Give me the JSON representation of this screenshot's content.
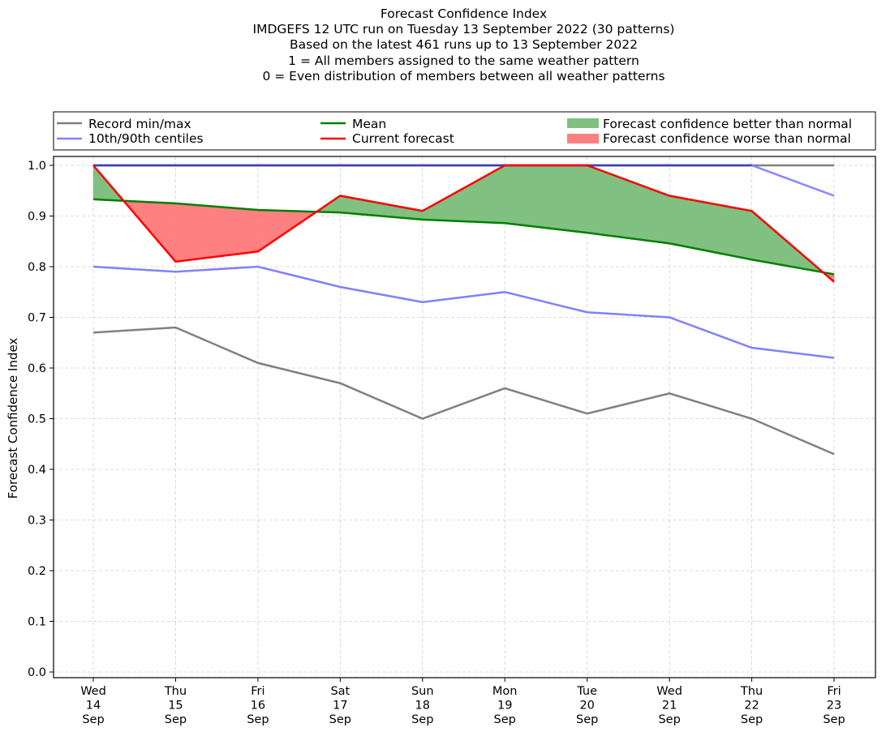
{
  "chart_data": {
    "type": "line",
    "title_lines": [
      "Forecast Confidence Index",
      "IMDGEFS 12 UTC run on Tuesday 13 September 2022 (30 patterns)",
      "Based on the latest 461 runs up to 13 September 2022",
      "1 = All members assigned to the same weather pattern",
      "0 = Even distribution of members between all weather patterns"
    ],
    "xlabel": "",
    "ylabel": "Forecast Confidence Index",
    "ylim": [
      0.0,
      1.0
    ],
    "yticks": [
      "0.0",
      "0.1",
      "0.2",
      "0.3",
      "0.4",
      "0.5",
      "0.6",
      "0.7",
      "0.8",
      "0.9",
      "1.0"
    ],
    "grid": true,
    "legend_position": "top (above plot, 3 columns)",
    "categories": [
      [
        "Wed",
        "14",
        "Sep"
      ],
      [
        "Thu",
        "15",
        "Sep"
      ],
      [
        "Fri",
        "16",
        "Sep"
      ],
      [
        "Sat",
        "17",
        "Sep"
      ],
      [
        "Sun",
        "18",
        "Sep"
      ],
      [
        "Mon",
        "19",
        "Sep"
      ],
      [
        "Tue",
        "20",
        "Sep"
      ],
      [
        "Wed",
        "21",
        "Sep"
      ],
      [
        "Thu",
        "22",
        "Sep"
      ],
      [
        "Fri",
        "23",
        "Sep"
      ]
    ],
    "series": [
      {
        "key": "record_max",
        "name": "Record min/max",
        "color": "#808080",
        "values": [
          1.0,
          1.0,
          1.0,
          1.0,
          1.0,
          1.0,
          1.0,
          1.0,
          1.0,
          1.0
        ]
      },
      {
        "key": "record_min",
        "name": "Record min/max",
        "color": "#808080",
        "values": [
          0.67,
          0.68,
          0.61,
          0.57,
          0.5,
          0.56,
          0.51,
          0.55,
          0.5,
          0.43
        ]
      },
      {
        "key": "p90",
        "name": "10th/90th centiles",
        "color": "#8080ff",
        "values": [
          1.0,
          1.0,
          1.0,
          1.0,
          1.0,
          1.0,
          1.0,
          1.0,
          1.0,
          0.94
        ]
      },
      {
        "key": "p10",
        "name": "10th/90th centiles",
        "color": "#8080ff",
        "values": [
          0.8,
          0.79,
          0.8,
          0.76,
          0.73,
          0.75,
          0.71,
          0.7,
          0.64,
          0.62
        ]
      },
      {
        "key": "mean",
        "name": "Mean",
        "color": "#008000",
        "values": [
          0.933,
          0.925,
          0.912,
          0.907,
          0.893,
          0.886,
          0.867,
          0.846,
          0.814,
          0.785
        ]
      },
      {
        "key": "current",
        "name": "Current forecast",
        "color": "#ff0000",
        "values": [
          1.0,
          0.81,
          0.83,
          0.94,
          0.91,
          1.0,
          1.0,
          0.94,
          0.91,
          0.77
        ]
      }
    ],
    "fills": [
      {
        "name": "Forecast confidence better than normal",
        "color": "#80c080",
        "condition": "current >= mean"
      },
      {
        "name": "Forecast confidence worse than normal",
        "color": "#ff8080",
        "condition": "current < mean"
      }
    ],
    "legend": [
      {
        "label": "Record min/max",
        "type": "line",
        "color": "#808080"
      },
      {
        "label": "10th/90th centiles",
        "type": "line",
        "color": "#8080ff"
      },
      {
        "label": "Mean",
        "type": "line",
        "color": "#008000"
      },
      {
        "label": "Current forecast",
        "type": "line",
        "color": "#ff0000"
      },
      {
        "label": "Forecast confidence better than normal",
        "type": "patch",
        "color": "#80c080"
      },
      {
        "label": "Forecast confidence worse than normal",
        "type": "patch",
        "color": "#ff8080"
      }
    ]
  }
}
